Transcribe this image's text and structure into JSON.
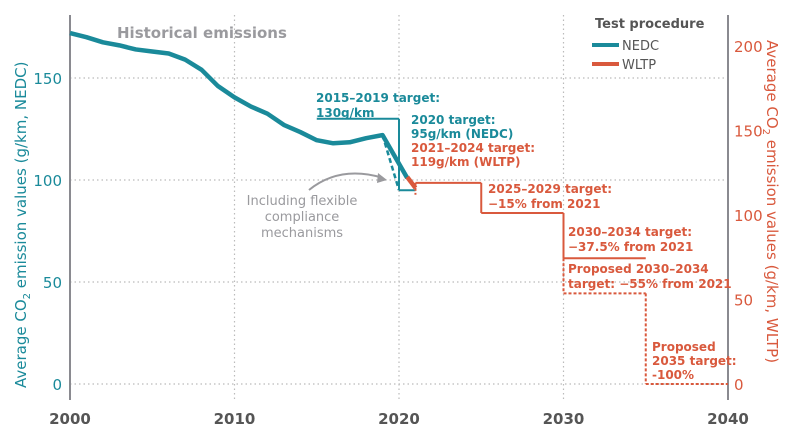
{
  "chart_data": {
    "type": "line",
    "xlim": [
      2000,
      2040
    ],
    "x_ticks": [
      "2000",
      "2010",
      "2020",
      "2030",
      "2040"
    ],
    "y_left": {
      "label": "Average CO₂ emission values (g/km, NEDC)",
      "label_main": "Average CO",
      "label_sub": "2",
      "label_rest": " emission values (g/km, NEDC)",
      "range": [
        0,
        181
      ],
      "ticks": [
        "0",
        "50",
        "100",
        "150"
      ]
    },
    "y_right": {
      "label": "Average CO₂ emission values (g/km, WLTP)",
      "label_main": "Average CO",
      "label_sub": "2",
      "label_rest": " emission values (g/km, WLTP)",
      "range": [
        0,
        218
      ],
      "ticks": [
        "0",
        "50",
        "100",
        "150",
        "200"
      ]
    },
    "grid": true,
    "legend": {
      "title": "Test procedure",
      "placement": "top-right",
      "items": [
        {
          "name": "NEDC",
          "color": "#1a8a9a"
        },
        {
          "name": "WLTP",
          "color": "#d9593d"
        }
      ]
    },
    "series": [
      {
        "name": "NEDC",
        "axis": "left",
        "style": "solid",
        "x": [
          2000,
          2001,
          2002,
          2003,
          2004,
          2005,
          2006,
          2007,
          2008,
          2009,
          2010,
          2011,
          2012,
          2013,
          2014,
          2015,
          2016,
          2017,
          2018,
          2019,
          2020.5
        ],
        "y": [
          172,
          170,
          167.5,
          166,
          164,
          163,
          162,
          159,
          154,
          146,
          140.5,
          136,
          132.5,
          127,
          123.5,
          119.5,
          118,
          118.5,
          120.5,
          122,
          101
        ]
      },
      {
        "name": "WLTP",
        "axis": "right",
        "style": "solid",
        "x": [
          2020.5,
          2021
        ],
        "y": [
          122.5,
          116
        ]
      }
    ],
    "flexible_compliance": {
      "axis": "left",
      "x": [
        2019,
        2020
      ],
      "y": [
        122,
        95
      ]
    },
    "targets": [
      {
        "axis": "left",
        "x": [
          2015,
          2020
        ],
        "y": 130,
        "style": "solid",
        "color": "#1a8a9a"
      },
      {
        "axis": "left",
        "x": [
          2020,
          2021
        ],
        "y": 95,
        "style": "solid",
        "color": "#1a8a9a"
      },
      {
        "axis": "right",
        "x": [
          2021,
          2025
        ],
        "y": 119,
        "style": "solid",
        "color": "#d9593d"
      },
      {
        "axis": "right",
        "x": [
          2025,
          2030
        ],
        "y": 101.2,
        "style": "solid",
        "color": "#d9593d"
      },
      {
        "axis": "right",
        "x": [
          2030,
          2035
        ],
        "y": 74.4,
        "style": "solid",
        "color": "#d9593d"
      },
      {
        "axis": "right",
        "x": [
          2030,
          2035
        ],
        "y": 53.6,
        "style": "dashed",
        "color": "#d9593d"
      },
      {
        "axis": "right",
        "x": [
          2035,
          2040
        ],
        "y": 0,
        "style": "dashed",
        "color": "#d9593d"
      }
    ],
    "annotations": {
      "historical": "Historical emissions",
      "t1519_a": "2015–2019 target:",
      "t1519_b": "130g/km",
      "t2020_a": "2020 target:",
      "t2020_b": "95g/km (NEDC)",
      "t2124_a": "2021–2024 target:",
      "t2124_b": "119g/km (WLTP)",
      "flex_a": "Including flexible",
      "flex_b": "compliance",
      "flex_c": "mechanisms",
      "t2529_a": "2025–2029 target:",
      "t2529_b": "−15% from 2021",
      "t3034_a": "2030–2034 target:",
      "t3034_b": "−37.5% from 2021",
      "p3034_a": "Proposed 2030–2034",
      "p3034_b": "target: −55% from 2021",
      "p2035_a": "Proposed",
      "p2035_b": "2035 target:",
      "p2035_c": "-100%"
    }
  }
}
